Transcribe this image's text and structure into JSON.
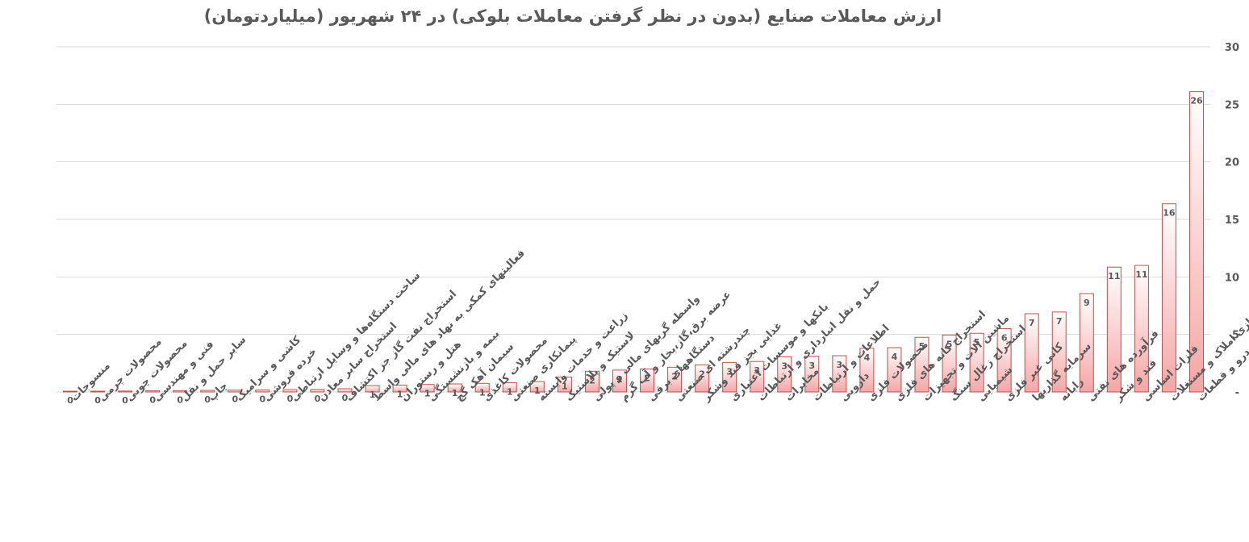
{
  "chart_data": {
    "type": "bar",
    "title": "ارزش معاملات صنایع (بدون در نظر گرفتن معاملات بلوکی) در ۲۴ شهریور (میلیاردتومان)",
    "ylim": [
      0,
      30
    ],
    "yticks": [
      "-",
      "5",
      "10",
      "15",
      "20",
      "25",
      "30"
    ],
    "ytick_values": [
      0,
      5,
      10,
      15,
      20,
      25,
      30
    ],
    "grid": true,
    "legend": "none",
    "colors": {
      "bar_fill_top": "#ffffff",
      "bar_fill_bottom": "#f4a6a6",
      "bar_stroke": "#c0504d",
      "grid": "#d9d9d9",
      "text": "#595959"
    },
    "categories": [
      "منسوجات",
      "محصولات چرمی",
      "محصولات چوبی",
      "فنی و مهندسی",
      "سایر حمل و نقل",
      "چاپ",
      "کاشی و سرامیک",
      "خرده فروشی",
      "ساخت دستگاه‌ها و وسایل ارتباطی",
      "استخراج سایر معادن",
      "استخراج نفت گاز جز اکتشاف",
      "فعالیتهای کمکی به نهاد های مالی واسط",
      "هتل و رستوران",
      "بیمه و بازنشستگی",
      "سیمان آهک گچ",
      "محصولات کاغذی",
      "پیمانکاری صنعتی",
      "زراعت و خدمات وابسته",
      "لاستیک و پلاستیک",
      "واسطه گریهای مالی و پولی",
      "عرضه برق،گاز،بخار و آب گرم",
      "دستگاههای برقی",
      "چندرشته ای صنعتی",
      "غذایی بجز قند وشکر",
      "بانکها و موسسات اعتباری",
      "حمل و نقل انبارداری و ارتباطات",
      "مخابرات",
      "اطلاعات و ارتباطات",
      "دارویی",
      "محصولات فلزی",
      "استخراج کانه های فلزی",
      "ماشین آلات و تجهیزات",
      "استخراج زغال سنگ",
      "شیمیایی",
      "کانی غیر فلزی",
      "سرمایه گذاریها",
      "رایانه",
      "فرآورده های نفتی",
      "قند و شکر",
      "فلزات اساسی",
      "انبوه سازی املاک و مستغلات",
      "خودرو و قطعات"
    ],
    "values": [
      0.05,
      0.06,
      0.08,
      0.1,
      0.12,
      0.14,
      0.16,
      0.18,
      0.2,
      0.22,
      0.28,
      0.55,
      0.6,
      0.65,
      0.7,
      0.75,
      0.8,
      0.9,
      1.3,
      1.8,
      1.9,
      2.0,
      2.15,
      2.35,
      2.55,
      2.65,
      3.05,
      3.1,
      3.15,
      3.8,
      3.85,
      4.75,
      4.95,
      5.1,
      5.5,
      6.8,
      6.95,
      8.55,
      10.85,
      11.0,
      16.35,
      26.1
    ],
    "data_labels": [
      "0",
      "0",
      "0",
      "0",
      "0",
      "0",
      "0",
      "0",
      "0",
      "0",
      "0",
      "1",
      "1",
      "1",
      "1",
      "1",
      "1",
      "1",
      "1",
      "2",
      "2",
      "2",
      "2",
      "2",
      "3",
      "3",
      "3",
      "3",
      "3",
      "4",
      "4",
      "5",
      "5",
      "5",
      "6",
      "7",
      "7",
      "9",
      "11",
      "11",
      "16",
      "26"
    ]
  }
}
